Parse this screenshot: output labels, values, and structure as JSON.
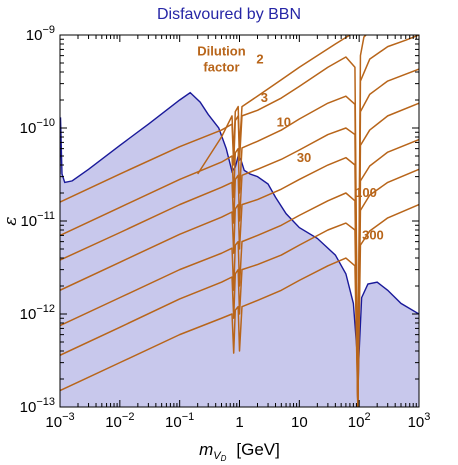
{
  "chart_data": {
    "type": "line",
    "title": "Disfavoured by BBN",
    "xlabel_main": "m",
    "xlabel_sub": "V",
    "xlabel_subsub": "D",
    "xlabel_unit": "[GeV]",
    "ylabel": "ε",
    "x_scale": "log",
    "y_scale": "log",
    "xlim": [
      0.001,
      1000
    ],
    "ylim": [
      1e-13,
      1e-09
    ],
    "grid": false,
    "x_ticks": [
      {
        "value": 0.001,
        "base": "10",
        "exp": "−3"
      },
      {
        "value": 0.01,
        "base": "10",
        "exp": "−2"
      },
      {
        "value": 0.1,
        "base": "10",
        "exp": "−1"
      },
      {
        "value": 1,
        "base": "1",
        "exp": ""
      },
      {
        "value": 10,
        "base": "10",
        "exp": ""
      },
      {
        "value": 100,
        "base": "10",
        "exp": "2"
      },
      {
        "value": 1000,
        "base": "10",
        "exp": "3"
      }
    ],
    "y_ticks": [
      {
        "value": 1e-13,
        "base": "10",
        "exp": "−13"
      },
      {
        "value": 1e-12,
        "base": "10",
        "exp": "−12"
      },
      {
        "value": 1e-11,
        "base": "10",
        "exp": "−11"
      },
      {
        "value": 1e-10,
        "base": "10",
        "exp": "−10"
      },
      {
        "value": 1e-09,
        "base": "10",
        "exp": "−9"
      }
    ],
    "colors": {
      "region_fill": "#c8c8ec",
      "region_edge": "#1a1a9a",
      "lines": "#b8651a",
      "title": "#2626a6"
    },
    "region": {
      "label": "Disfavoured by BBN",
      "boundary": [
        [
          0.001,
          3.2e-11
        ],
        [
          0.00102,
          1.3e-10
        ],
        [
          0.00108,
          3.2e-11
        ],
        [
          0.0012,
          2.6e-11
        ],
        [
          0.0016,
          2.7e-11
        ],
        [
          0.003,
          3.6e-11
        ],
        [
          0.01,
          6.5e-11
        ],
        [
          0.03,
          1.1e-10
        ],
        [
          0.1,
          2e-10
        ],
        [
          0.15,
          2.4e-10
        ],
        [
          0.22,
          1.9e-10
        ],
        [
          0.3,
          1.4e-10
        ],
        [
          0.45,
          1e-10
        ],
        [
          0.6,
          6e-11
        ],
        [
          0.75,
          3.4e-11
        ],
        [
          0.85,
          3.8e-11
        ],
        [
          0.95,
          5e-11
        ],
        [
          1.05,
          4.6e-11
        ],
        [
          1.2,
          3.5e-11
        ],
        [
          1.5,
          3.2e-11
        ],
        [
          2,
          3e-11
        ],
        [
          3,
          2.5e-11
        ],
        [
          4,
          1.8e-11
        ],
        [
          6,
          1.2e-11
        ],
        [
          10,
          8.5e-12
        ],
        [
          20,
          6.5e-12
        ],
        [
          40,
          4.3e-12
        ],
        [
          60,
          2.7e-12
        ],
        [
          80,
          1.3e-12
        ],
        [
          92,
          4e-13
        ],
        [
          95,
          1e-13
        ],
        [
          98,
          3e-13
        ],
        [
          110,
          1.5e-12
        ],
        [
          140,
          2.1e-12
        ],
        [
          200,
          2.2e-12
        ],
        [
          300,
          1.8e-12
        ],
        [
          500,
          1.3e-12
        ],
        [
          1000,
          1e-12
        ]
      ]
    },
    "series": [
      {
        "name": "2",
        "label_pos": [
          2.2,
          5.6e-10
        ],
        "values": [
          [
            0.2,
            3.2e-11
          ],
          [
            0.5,
            8e-11
          ],
          [
            0.75,
            1.35e-10
          ],
          [
            0.8,
            5e-11
          ],
          [
            0.85,
            1.5e-10
          ],
          [
            0.95,
            1.7e-10
          ],
          [
            1.0,
            6e-11
          ],
          [
            1.1,
            1.7e-10
          ],
          [
            2,
            2.2e-10
          ],
          [
            5,
            3.3e-10
          ],
          [
            10,
            4.5e-10
          ],
          [
            20,
            6e-10
          ],
          [
            40,
            8e-10
          ],
          [
            70,
            1e-09
          ]
        ]
      },
      {
        "name": "3",
        "label_pos": [
          2.6,
          2.15e-10
        ],
        "values": [
          [
            0.001,
            1.6e-11
          ],
          [
            0.01,
            3.2e-11
          ],
          [
            0.1,
            6.3e-11
          ],
          [
            0.5,
            9.5e-11
          ],
          [
            0.75,
            1.1e-10
          ],
          [
            0.8,
            4e-11
          ],
          [
            0.85,
            1.2e-10
          ],
          [
            0.95,
            1.35e-10
          ],
          [
            1.0,
            4.5e-11
          ],
          [
            1.1,
            1.35e-10
          ],
          [
            2,
            1.55e-10
          ],
          [
            5,
            2.1e-10
          ],
          [
            10,
            2.8e-10
          ],
          [
            30,
            4.5e-10
          ],
          [
            60,
            5.8e-10
          ],
          [
            85,
            4.5e-10
          ],
          [
            95,
            1e-13
          ],
          [
            105,
            6e-10
          ],
          [
            120,
            9.5e-10
          ],
          [
            130,
            1e-09
          ]
        ]
      },
      {
        "name": "10",
        "label_pos": [
          5.5,
          1.17e-10
        ],
        "values": [
          [
            0.001,
            7e-12
          ],
          [
            0.01,
            1.4e-11
          ],
          [
            0.1,
            2.8e-11
          ],
          [
            0.5,
            4.3e-11
          ],
          [
            0.75,
            5e-11
          ],
          [
            0.8,
            1.8e-11
          ],
          [
            0.85,
            5.4e-11
          ],
          [
            0.95,
            6e-11
          ],
          [
            1.0,
            2e-11
          ],
          [
            1.1,
            6.1e-11
          ],
          [
            2,
            7.2e-11
          ],
          [
            5,
            9.5e-11
          ],
          [
            10,
            1.25e-10
          ],
          [
            30,
            1.85e-10
          ],
          [
            60,
            2.2e-10
          ],
          [
            85,
            1.8e-10
          ],
          [
            95,
            1e-13
          ],
          [
            105,
            3.2e-10
          ],
          [
            150,
            5.5e-10
          ],
          [
            300,
            7.5e-10
          ],
          [
            600,
            8.8e-10
          ],
          [
            1000,
            1e-09
          ]
        ]
      },
      {
        "name": "30",
        "label_pos": [
          12,
          4.9e-11
        ],
        "values": [
          [
            0.001,
            3.8e-12
          ],
          [
            0.01,
            7.5e-12
          ],
          [
            0.1,
            1.5e-11
          ],
          [
            0.5,
            2.3e-11
          ],
          [
            0.75,
            2.6e-11
          ],
          [
            0.8,
            9.5e-12
          ],
          [
            0.85,
            2.8e-11
          ],
          [
            0.95,
            3.1e-11
          ],
          [
            1.0,
            1e-11
          ],
          [
            1.1,
            3.1e-11
          ],
          [
            2,
            3.6e-11
          ],
          [
            5,
            4.6e-11
          ],
          [
            10,
            5.8e-11
          ],
          [
            30,
            8.5e-11
          ],
          [
            60,
            1e-10
          ],
          [
            85,
            8.5e-11
          ],
          [
            95,
            1e-13
          ],
          [
            105,
            1.5e-10
          ],
          [
            150,
            2.3e-10
          ],
          [
            300,
            3.2e-10
          ],
          [
            1000,
            4.3e-10
          ]
        ]
      },
      {
        "name": "100",
        "label_pos": [
          130,
          2.05e-11
        ],
        "values": [
          [
            0.001,
            1.8e-12
          ],
          [
            0.01,
            3.6e-12
          ],
          [
            0.1,
            7.2e-12
          ],
          [
            0.5,
            1.1e-11
          ],
          [
            0.75,
            1.25e-11
          ],
          [
            0.8,
            4.5e-12
          ],
          [
            0.85,
            1.35e-11
          ],
          [
            0.95,
            1.5e-11
          ],
          [
            1.0,
            5e-12
          ],
          [
            1.1,
            1.5e-11
          ],
          [
            2,
            1.7e-11
          ],
          [
            5,
            2.2e-11
          ],
          [
            10,
            2.8e-11
          ],
          [
            30,
            4e-11
          ],
          [
            60,
            4.8e-11
          ],
          [
            85,
            4e-11
          ],
          [
            95,
            1e-13
          ],
          [
            105,
            6.5e-11
          ],
          [
            150,
            9.5e-11
          ],
          [
            300,
            1.35e-10
          ],
          [
            1000,
            1.85e-10
          ]
        ]
      },
      {
        "name": "300",
        "label_pos": [
          170,
          7.2e-12
        ],
        "values": [
          [
            0.001,
            7.5e-13
          ],
          [
            0.01,
            1.5e-12
          ],
          [
            0.1,
            3e-12
          ],
          [
            0.5,
            4.5e-12
          ],
          [
            0.75,
            5.1e-12
          ],
          [
            0.8,
            1.8e-12
          ],
          [
            0.85,
            5.5e-12
          ],
          [
            0.95,
            6e-12
          ],
          [
            1.0,
            2e-12
          ],
          [
            1.1,
            6e-12
          ],
          [
            2,
            7e-12
          ],
          [
            5,
            9e-12
          ],
          [
            10,
            1.15e-11
          ],
          [
            30,
            1.65e-11
          ],
          [
            60,
            2e-11
          ],
          [
            85,
            1.65e-11
          ],
          [
            95,
            1e-13
          ],
          [
            105,
            2.7e-11
          ],
          [
            150,
            3.9e-11
          ],
          [
            300,
            5.5e-11
          ],
          [
            1000,
            7.5e-11
          ]
        ]
      },
      {
        "name": "",
        "values": [
          [
            0.001,
            3.6e-13
          ],
          [
            0.01,
            7.2e-13
          ],
          [
            0.1,
            1.45e-12
          ],
          [
            0.5,
            2.2e-12
          ],
          [
            0.75,
            2.5e-12
          ],
          [
            0.8,
            9e-13
          ],
          [
            0.85,
            2.7e-12
          ],
          [
            0.95,
            3e-12
          ],
          [
            1.0,
            1e-12
          ],
          [
            1.1,
            3e-12
          ],
          [
            2,
            3.4e-12
          ],
          [
            5,
            4.3e-12
          ],
          [
            10,
            5.5e-12
          ],
          [
            30,
            8e-12
          ],
          [
            60,
            9.5e-12
          ],
          [
            85,
            8e-12
          ],
          [
            95,
            1e-13
          ],
          [
            105,
            1.3e-11
          ],
          [
            150,
            1.9e-11
          ],
          [
            300,
            2.6e-11
          ],
          [
            1000,
            3.6e-11
          ]
        ]
      },
      {
        "name": "",
        "values": [
          [
            0.001,
            1.5e-13
          ],
          [
            0.01,
            3e-13
          ],
          [
            0.1,
            6e-13
          ],
          [
            0.5,
            9e-13
          ],
          [
            0.75,
            1e-12
          ],
          [
            0.8,
            3.8e-13
          ],
          [
            0.85,
            1.1e-12
          ],
          [
            0.95,
            1.2e-12
          ],
          [
            1.0,
            4e-13
          ],
          [
            1.1,
            1.2e-12
          ],
          [
            2,
            1.4e-12
          ],
          [
            5,
            1.8e-12
          ],
          [
            10,
            2.3e-12
          ],
          [
            30,
            3.3e-12
          ],
          [
            60,
            4e-12
          ],
          [
            85,
            3.3e-12
          ],
          [
            95,
            1e-13
          ],
          [
            105,
            5.5e-12
          ],
          [
            150,
            7.8e-12
          ],
          [
            300,
            1.08e-11
          ],
          [
            1000,
            1.5e-11
          ]
        ]
      }
    ],
    "annotation": {
      "line1": "Dilution",
      "line2": "factor",
      "pos": [
        0.5,
        6e-10
      ]
    }
  }
}
